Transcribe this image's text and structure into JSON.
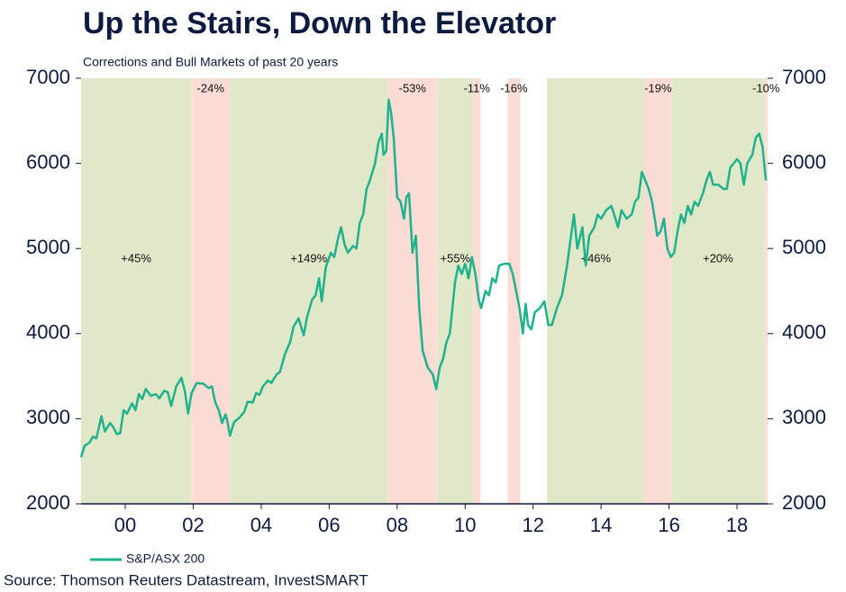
{
  "chart_data": {
    "type": "line",
    "title": "Up the Stairs, Down the Elevator",
    "subtitle": "Corrections and Bull Markets of past 20 years",
    "source": "Source: Thomson Reuters Datastream, InvestSMART",
    "xlim": [
      1998.7,
      2018.9
    ],
    "xticks": [
      {
        "value": 2000,
        "label": "00"
      },
      {
        "value": 2002,
        "label": "02"
      },
      {
        "value": 2004,
        "label": "04"
      },
      {
        "value": 2006,
        "label": "06"
      },
      {
        "value": 2008,
        "label": "08"
      },
      {
        "value": 2010,
        "label": "10"
      },
      {
        "value": 2012,
        "label": "12"
      },
      {
        "value": 2014,
        "label": "14"
      },
      {
        "value": 2016,
        "label": "16"
      },
      {
        "value": 2018,
        "label": "18"
      }
    ],
    "ylim": [
      2000,
      7000
    ],
    "yticks": [
      2000,
      3000,
      4000,
      5000,
      6000,
      7000
    ],
    "y2lim": [
      2000,
      7000
    ],
    "y2ticks": [
      2000,
      3000,
      4000,
      5000,
      6000,
      7000
    ],
    "bands": [
      {
        "start": 1998.7,
        "end": 2001.94,
        "color": "#e0e8c9",
        "label": "+45%"
      },
      {
        "start": 2001.94,
        "end": 2003.08,
        "color": "#fbdcd5",
        "label": "-24%"
      },
      {
        "start": 2003.08,
        "end": 2007.72,
        "color": "#e0e8c9",
        "label": "+149%"
      },
      {
        "start": 2007.72,
        "end": 2009.18,
        "color": "#fbdcd5",
        "label": "-53%"
      },
      {
        "start": 2009.18,
        "end": 2010.24,
        "color": "#e0e8c9",
        "label": "+55%"
      },
      {
        "start": 2010.24,
        "end": 2010.45,
        "color": "#fbdcd5",
        "label": "-11%"
      },
      {
        "start": 2011.25,
        "end": 2011.62,
        "color": "#fbdcd5",
        "label": "-16%"
      },
      {
        "start": 2012.41,
        "end": 2015.28,
        "color": "#e0e8c9",
        "label": "+46%"
      },
      {
        "start": 2015.28,
        "end": 2016.07,
        "color": "#fbdcd5",
        "label": "-19%"
      },
      {
        "start": 2016.07,
        "end": 2018.81,
        "color": "#e0e8c9",
        "label": "+20%"
      },
      {
        "start": 2018.81,
        "end": 2018.9,
        "color": "#fbdcd5",
        "label": "-10%"
      }
    ],
    "x": [
      1998.7,
      1998.8,
      1998.95,
      1999.05,
      1999.15,
      1999.3,
      1999.4,
      1999.55,
      1999.65,
      1999.75,
      1999.85,
      1999.95,
      2000.05,
      2000.2,
      2000.3,
      2000.4,
      2000.5,
      2000.6,
      2000.75,
      2000.9,
      2001.0,
      2001.15,
      2001.25,
      2001.35,
      2001.5,
      2001.65,
      2001.75,
      2001.85,
      2001.95,
      2002.1,
      2002.3,
      2002.45,
      2002.55,
      2002.65,
      2002.75,
      2002.85,
      2002.95,
      2003.0,
      2003.08,
      2003.2,
      2003.35,
      2003.5,
      2003.6,
      2003.75,
      2003.85,
      2003.95,
      2004.05,
      2004.2,
      2004.3,
      2004.45,
      2004.55,
      2004.7,
      2004.85,
      2004.95,
      2005.1,
      2005.25,
      2005.35,
      2005.5,
      2005.6,
      2005.7,
      2005.78,
      2005.9,
      2006.05,
      2006.15,
      2006.25,
      2006.35,
      2006.45,
      2006.55,
      2006.7,
      2006.8,
      2006.9,
      2007.0,
      2007.1,
      2007.2,
      2007.35,
      2007.45,
      2007.55,
      2007.6,
      2007.68,
      2007.75,
      2007.82,
      2007.9,
      2008.0,
      2008.1,
      2008.2,
      2008.27,
      2008.35,
      2008.45,
      2008.55,
      2008.65,
      2008.75,
      2008.9,
      2009.05,
      2009.15,
      2009.25,
      2009.35,
      2009.45,
      2009.55,
      2009.7,
      2009.8,
      2009.9,
      2010.0,
      2010.1,
      2010.2,
      2010.3,
      2010.4,
      2010.47,
      2010.6,
      2010.7,
      2010.8,
      2010.9,
      2011.0,
      2011.15,
      2011.3,
      2011.4,
      2011.5,
      2011.6,
      2011.7,
      2011.78,
      2011.85,
      2011.95,
      2012.05,
      2012.2,
      2012.33,
      2012.45,
      2012.55,
      2012.7,
      2012.85,
      2013.0,
      2013.1,
      2013.2,
      2013.3,
      2013.45,
      2013.55,
      2013.65,
      2013.8,
      2013.9,
      2014.0,
      2014.15,
      2014.3,
      2014.4,
      2014.5,
      2014.6,
      2014.75,
      2014.9,
      2015.0,
      2015.1,
      2015.2,
      2015.3,
      2015.4,
      2015.5,
      2015.6,
      2015.65,
      2015.75,
      2015.85,
      2015.95,
      2016.05,
      2016.15,
      2016.25,
      2016.35,
      2016.45,
      2016.55,
      2016.65,
      2016.75,
      2016.85,
      2017.0,
      2017.1,
      2017.2,
      2017.3,
      2017.45,
      2017.6,
      2017.7,
      2017.8,
      2017.9,
      2018.0,
      2018.1,
      2018.2,
      2018.3,
      2018.45,
      2018.55,
      2018.65,
      2018.75,
      2018.85
    ],
    "series": [
      {
        "name": "S&P/ASX 200",
        "color": "#1fb28c",
        "values": [
          2550,
          2680,
          2720,
          2790,
          2770,
          3030,
          2850,
          2950,
          2900,
          2820,
          2830,
          3100,
          3060,
          3180,
          3100,
          3290,
          3230,
          3350,
          3270,
          3290,
          3240,
          3330,
          3310,
          3150,
          3380,
          3480,
          3330,
          3060,
          3300,
          3420,
          3410,
          3360,
          3380,
          3190,
          3100,
          2950,
          3050,
          2980,
          2800,
          2960,
          3010,
          3080,
          3200,
          3190,
          3300,
          3280,
          3380,
          3450,
          3420,
          3520,
          3550,
          3760,
          3900,
          4080,
          4180,
          3980,
          4200,
          4400,
          4450,
          4650,
          4380,
          4780,
          4950,
          4900,
          5100,
          5250,
          5050,
          4950,
          5030,
          5000,
          5300,
          5400,
          5700,
          5800,
          6000,
          6250,
          6350,
          6100,
          6150,
          6750,
          6600,
          6300,
          5600,
          5550,
          5350,
          5600,
          5650,
          4950,
          5150,
          4300,
          3800,
          3600,
          3520,
          3350,
          3600,
          3700,
          3900,
          4000,
          4600,
          4800,
          4700,
          4820,
          4650,
          4900,
          4700,
          4400,
          4300,
          4500,
          4450,
          4650,
          4600,
          4800,
          4820,
          4820,
          4700,
          4500,
          4300,
          4000,
          4350,
          4100,
          4050,
          4250,
          4300,
          4380,
          4100,
          4100,
          4300,
          4450,
          4800,
          5100,
          5400,
          5000,
          5250,
          4800,
          5150,
          5250,
          5400,
          5350,
          5450,
          5500,
          5380,
          5250,
          5450,
          5350,
          5400,
          5550,
          5600,
          5900,
          5800,
          5700,
          5550,
          5300,
          5150,
          5200,
          5350,
          5000,
          4900,
          4950,
          5200,
          5400,
          5300,
          5500,
          5400,
          5550,
          5500,
          5650,
          5800,
          5900,
          5750,
          5750,
          5700,
          5700,
          5950,
          6000,
          6050,
          6000,
          5750,
          6000,
          6100,
          6300,
          6350,
          6200,
          5800
        ]
      }
    ]
  }
}
